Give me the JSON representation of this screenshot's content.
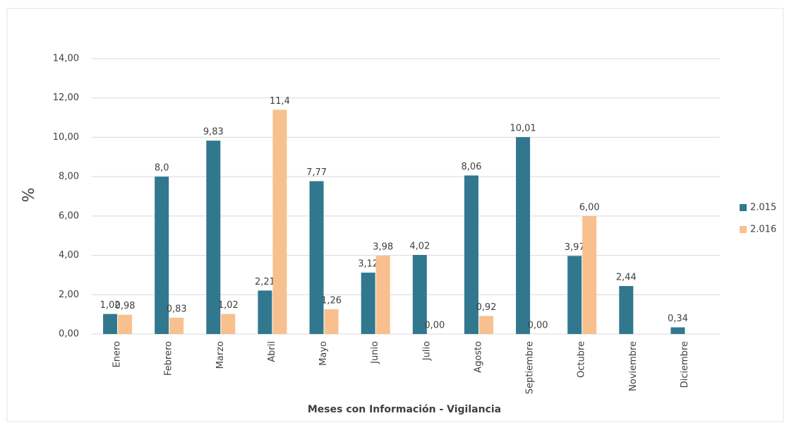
{
  "chart_data": {
    "type": "bar",
    "x_label": "Meses con Información  - Vigilancia",
    "y_label": "%",
    "categories": [
      "Enero",
      "Febrero",
      "Marzo",
      "Abril",
      "Mayo",
      "Junio",
      "Julio",
      "Agosto",
      "Septiembre",
      "Octubre",
      "Noviembre",
      "Diciembre"
    ],
    "series": [
      {
        "name": "2.015",
        "color": "#31788f",
        "values": [
          1.02,
          8.0,
          9.83,
          2.21,
          7.77,
          3.12,
          4.02,
          8.06,
          10.01,
          3.97,
          2.44,
          0.34
        ],
        "value_labels": [
          "1,02",
          "8,0",
          "9,83",
          "2,21",
          "7,77",
          "3,12",
          "4,02",
          "8,06",
          "10,01",
          "3,97",
          "2,44",
          "0,34"
        ]
      },
      {
        "name": "2.016",
        "color": "#f8c08f",
        "values": [
          0.98,
          0.83,
          1.02,
          11.4,
          1.26,
          3.98,
          0.0,
          0.92,
          0.0,
          6.0,
          null,
          null
        ],
        "value_labels": [
          "0,98",
          "0,83",
          "1,02",
          "11,4",
          "1,26",
          "3,98",
          "0,00",
          "0,92",
          "0,00",
          "6,00",
          null,
          null
        ]
      }
    ],
    "ylim": [
      0,
      14
    ],
    "yticks": [
      {
        "value": 0,
        "label": "0,00"
      },
      {
        "value": 2,
        "label": "2,00"
      },
      {
        "value": 4,
        "label": "4,00"
      },
      {
        "value": 6,
        "label": "6,00"
      },
      {
        "value": 8,
        "label": "8,00"
      },
      {
        "value": 10,
        "label": "10,00"
      },
      {
        "value": 12,
        "label": "12,00"
      },
      {
        "value": 14,
        "label": "14,00"
      }
    ],
    "grid": true,
    "legend": "right"
  }
}
